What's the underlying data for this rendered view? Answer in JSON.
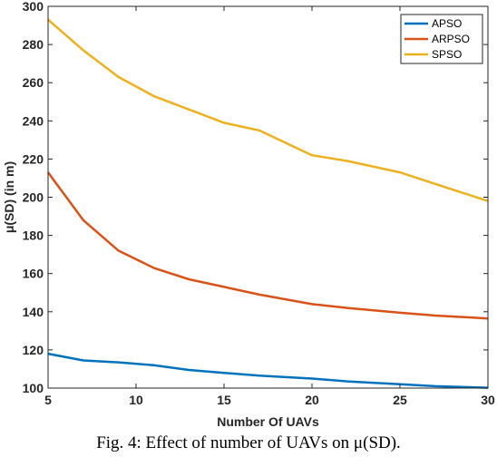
{
  "caption": "Fig. 4: Effect of number of UAVs on μ(SD).",
  "chart_data": {
    "type": "line",
    "title": "",
    "xlabel": "Number Of UAVs",
    "ylabel": "μ(SD) (in m)",
    "xlim": [
      5,
      30
    ],
    "ylim": [
      100,
      300
    ],
    "xticks": [
      5,
      10,
      15,
      20,
      25,
      30
    ],
    "yticks": [
      100,
      120,
      140,
      160,
      180,
      200,
      220,
      240,
      260,
      280,
      300
    ],
    "grid": false,
    "legend_position": "top-right",
    "x": [
      5,
      7,
      9,
      11,
      13,
      15,
      17,
      20,
      22,
      25,
      27,
      30
    ],
    "series": [
      {
        "name": "APSO",
        "color": "#0072BD",
        "values": [
          118,
          114.5,
          113.5,
          112,
          109.5,
          108,
          106.5,
          105,
          103.5,
          102,
          101,
          100.2
        ]
      },
      {
        "name": "ARPSO",
        "color": "#D95319",
        "values": [
          213,
          188,
          172,
          163,
          157,
          153,
          149,
          144,
          142,
          139.5,
          138,
          136.5
        ]
      },
      {
        "name": "SPSO",
        "color": "#EDB120",
        "values": [
          293,
          277,
          263,
          253,
          246,
          239,
          235,
          222,
          219,
          213,
          207,
          198
        ]
      }
    ]
  }
}
